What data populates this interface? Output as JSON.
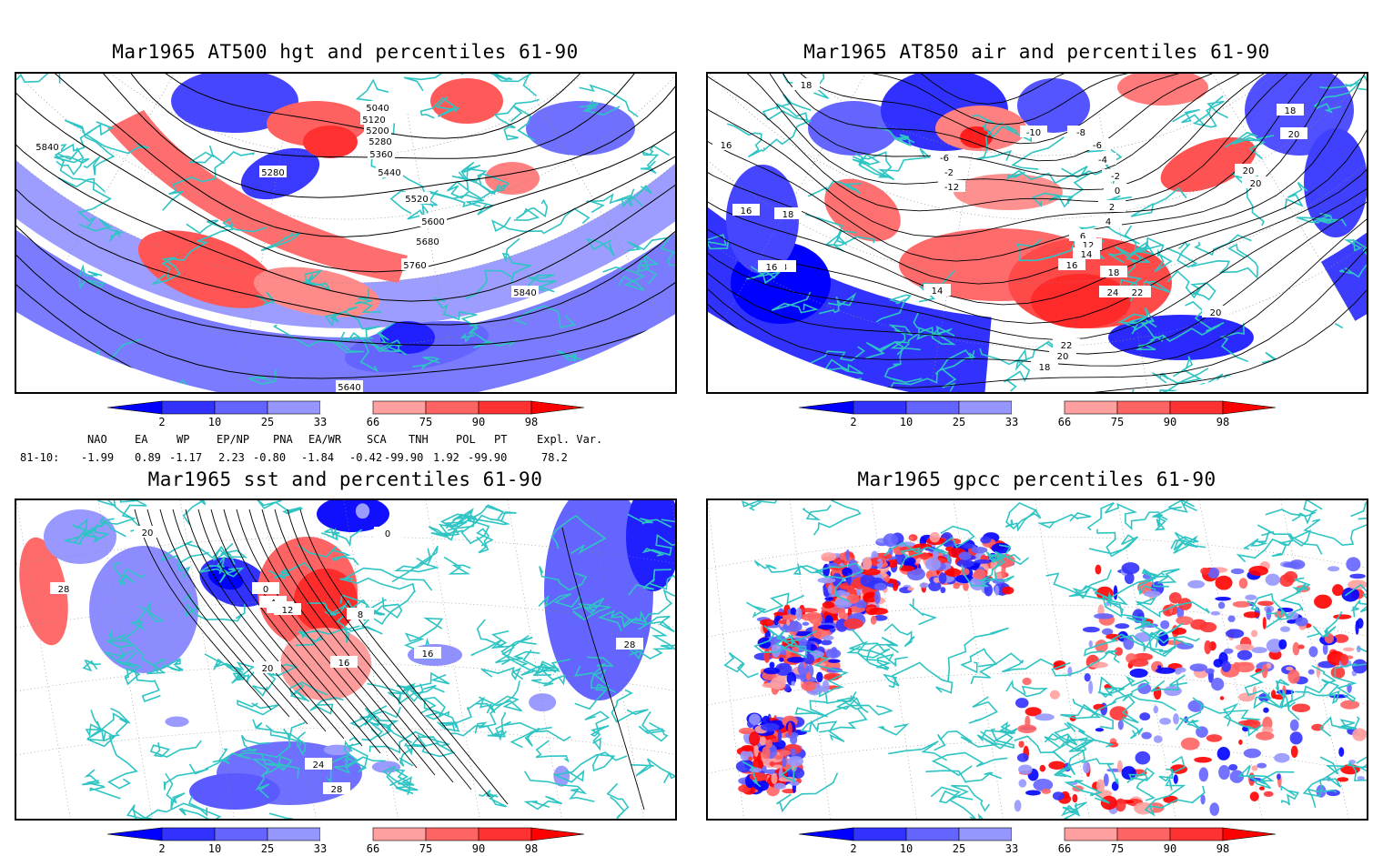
{
  "panels": [
    {
      "id": "hgt500",
      "title": "Mar1965 AT500 hgt and percentiles 61-90",
      "contour_labels": [
        "5040",
        "5120",
        "5200",
        "5280",
        "5360",
        "5440",
        "5520",
        "5600",
        "5680",
        "5760",
        "5840",
        "5840",
        "5640",
        "5280"
      ]
    },
    {
      "id": "air850",
      "title": "Mar1965 AT850 air and percentiles 61-90",
      "contour_labels": [
        "18",
        "16",
        "16",
        "18",
        "-8",
        "-6",
        "-2",
        "-12",
        "-10",
        "-8",
        "-6",
        "-4",
        "-2",
        "0",
        "2",
        "4",
        "6",
        "12",
        "14",
        "16",
        "18",
        "20",
        "20",
        "22",
        "24",
        "20",
        "22",
        "20",
        "18",
        "14",
        "16",
        "18",
        "20"
      ]
    },
    {
      "id": "sst",
      "title": "Mar1965 sst and percentiles 61-90",
      "contour_labels": [
        "28",
        "20",
        "0",
        "4",
        "8",
        "12",
        "16",
        "20",
        "24",
        "28",
        "28",
        "16",
        "8",
        "0"
      ]
    },
    {
      "id": "gpcc",
      "title": "Mar1965 gpcc percentiles 61-90",
      "contour_labels": []
    }
  ],
  "colorbar": {
    "labels": [
      "2",
      "10",
      "25",
      "33",
      "66",
      "75",
      "90",
      "98"
    ],
    "colors": [
      "#0000ff",
      "#3232ff",
      "#6464ff",
      "#9696ff",
      "#ffffff",
      "#ffa0a0",
      "#ff6464",
      "#ff3232",
      "#ff0000"
    ]
  },
  "indices": {
    "headers": [
      "NAO",
      "EA",
      "WP",
      "EP/NP",
      "PNA",
      "EA/WR",
      "SCA",
      "TNH",
      "POL",
      "PT",
      "Expl. Var."
    ],
    "row_label": "81-10:",
    "values": [
      "-1.99",
      "0.89",
      "-1.17",
      "2.23",
      "-0.80",
      "-1.84",
      "-0.42",
      "-99.90",
      "1.92",
      "-99.90",
      "78.2"
    ]
  },
  "map_colors": {
    "land_outline": "#2fc4c4",
    "contour": "#000000",
    "grid": "#888888"
  }
}
